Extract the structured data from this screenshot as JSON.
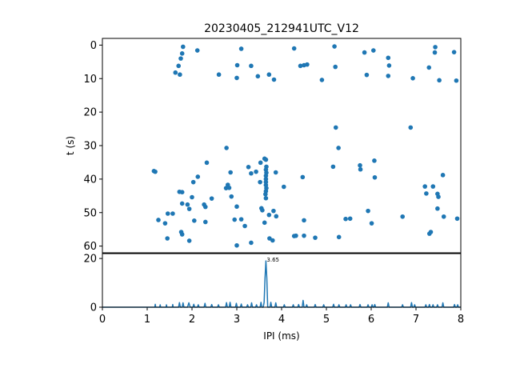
{
  "chart_data": [
    {
      "type": "scatter",
      "title": "20230405_212941UTC_V12",
      "ylabel": "t (s)",
      "xlim": [
        0,
        8
      ],
      "ylim": [
        62,
        -2
      ],
      "y_inverted": true,
      "yticks": [
        0,
        10,
        20,
        30,
        40,
        50,
        60
      ],
      "color": "#1f77b4",
      "points": [
        [
          1.8,
          0.5
        ],
        [
          1.78,
          2.5
        ],
        [
          2.12,
          1.6
        ],
        [
          1.75,
          4.0
        ],
        [
          1.7,
          6.2
        ],
        [
          1.63,
          8.2
        ],
        [
          1.73,
          8.8
        ],
        [
          3.1,
          1.1
        ],
        [
          3.01,
          6.0
        ],
        [
          3.0,
          9.8
        ],
        [
          3.32,
          6.2
        ],
        [
          3.47,
          9.3
        ],
        [
          3.72,
          8.8
        ],
        [
          3.83,
          10.3
        ],
        [
          4.28,
          1.0
        ],
        [
          4.5,
          6.0
        ],
        [
          4.42,
          6.2
        ],
        [
          4.57,
          5.8
        ],
        [
          4.9,
          10.4
        ],
        [
          5.18,
          0.4
        ],
        [
          5.2,
          6.5
        ],
        [
          5.85,
          2.2
        ],
        [
          6.05,
          1.6
        ],
        [
          5.9,
          8.9
        ],
        [
          6.38,
          3.8
        ],
        [
          6.4,
          6.1
        ],
        [
          6.38,
          9.2
        ],
        [
          6.93,
          9.9
        ],
        [
          7.43,
          0.6
        ],
        [
          7.42,
          2.2
        ],
        [
          7.29,
          6.7
        ],
        [
          7.52,
          10.5
        ],
        [
          7.85,
          2.1
        ],
        [
          7.9,
          10.6
        ],
        [
          2.6,
          8.8
        ],
        [
          5.21,
          24.6
        ],
        [
          6.88,
          24.6
        ],
        [
          5.27,
          30.7
        ],
        [
          2.77,
          30.7
        ],
        [
          1.18,
          37.8
        ],
        [
          1.15,
          37.6
        ],
        [
          1.25,
          52.2
        ],
        [
          1.4,
          53.2
        ],
        [
          1.45,
          57.7
        ],
        [
          1.46,
          50.3
        ],
        [
          1.57,
          50.3
        ],
        [
          1.78,
          43.9
        ],
        [
          1.72,
          43.8
        ],
        [
          1.78,
          47.3
        ],
        [
          1.76,
          55.8
        ],
        [
          1.78,
          56.5
        ],
        [
          1.9,
          47.6
        ],
        [
          1.94,
          48.9
        ],
        [
          1.94,
          58.4
        ],
        [
          2.0,
          45.4
        ],
        [
          2.03,
          40.9
        ],
        [
          2.05,
          52.4
        ],
        [
          2.13,
          39.3
        ],
        [
          2.27,
          47.6
        ],
        [
          2.3,
          48.3
        ],
        [
          2.3,
          52.8
        ],
        [
          2.33,
          35.1
        ],
        [
          2.44,
          45.8
        ],
        [
          2.76,
          42.7
        ],
        [
          2.8,
          41.7
        ],
        [
          2.83,
          42.6
        ],
        [
          2.86,
          38.0
        ],
        [
          2.88,
          45.2
        ],
        [
          2.95,
          52.1
        ],
        [
          3.0,
          48.2
        ],
        [
          3.0,
          59.8
        ],
        [
          3.1,
          52.0
        ],
        [
          3.18,
          54.0
        ],
        [
          3.26,
          36.4
        ],
        [
          3.32,
          38.3
        ],
        [
          3.32,
          59.0
        ],
        [
          3.43,
          37.8
        ],
        [
          3.53,
          35.1
        ],
        [
          3.52,
          40.9
        ],
        [
          3.57,
          49.3
        ],
        [
          3.55,
          48.7
        ],
        [
          3.62,
          33.9
        ],
        [
          3.65,
          34.2
        ],
        [
          3.66,
          36.3
        ],
        [
          3.65,
          37.2
        ],
        [
          3.66,
          38.1
        ],
        [
          3.65,
          39.0
        ],
        [
          3.65,
          40.0
        ],
        [
          3.65,
          40.9
        ],
        [
          3.65,
          41.8
        ],
        [
          3.66,
          42.7
        ],
        [
          3.65,
          43.6
        ],
        [
          3.64,
          44.5
        ],
        [
          3.65,
          45.7
        ],
        [
          3.62,
          53.0
        ],
        [
          3.72,
          50.7
        ],
        [
          3.73,
          57.7
        ],
        [
          3.8,
          58.3
        ],
        [
          3.82,
          49.5
        ],
        [
          3.87,
          38.0
        ],
        [
          3.88,
          51.1
        ],
        [
          4.05,
          42.3
        ],
        [
          4.28,
          57.0
        ],
        [
          4.32,
          56.9
        ],
        [
          4.47,
          39.4
        ],
        [
          4.5,
          52.3
        ],
        [
          4.5,
          56.9
        ],
        [
          4.75,
          57.5
        ],
        [
          5.15,
          36.3
        ],
        [
          5.28,
          57.3
        ],
        [
          5.43,
          51.9
        ],
        [
          5.53,
          51.8
        ],
        [
          5.75,
          35.9
        ],
        [
          5.76,
          37.1
        ],
        [
          5.93,
          49.5
        ],
        [
          6.01,
          53.2
        ],
        [
          6.07,
          34.5
        ],
        [
          6.08,
          39.5
        ],
        [
          6.7,
          51.2
        ],
        [
          7.2,
          42.2
        ],
        [
          7.23,
          44.3
        ],
        [
          7.3,
          56.3
        ],
        [
          7.33,
          55.8
        ],
        [
          7.38,
          42.2
        ],
        [
          7.48,
          44.4
        ],
        [
          7.5,
          45.3
        ],
        [
          7.48,
          48.8
        ],
        [
          7.6,
          38.8
        ],
        [
          7.62,
          51.2
        ],
        [
          7.92,
          51.8
        ]
      ]
    },
    {
      "type": "line",
      "xlabel": "IPI (ms)",
      "xlim": [
        0,
        8
      ],
      "ylim": [
        0,
        22
      ],
      "xticks": [
        0,
        1,
        2,
        3,
        4,
        5,
        6,
        7,
        8
      ],
      "yticks": [
        0,
        20
      ],
      "color": "#1f77b4",
      "peak_label": "3.65",
      "peak_x": 3.65,
      "points": [
        [
          0,
          0
        ],
        [
          1.17,
          0
        ],
        [
          1.18,
          1.2
        ],
        [
          1.19,
          0
        ],
        [
          1.28,
          0
        ],
        [
          1.29,
          1.0
        ],
        [
          1.3,
          0
        ],
        [
          1.42,
          0
        ],
        [
          1.43,
          1.0
        ],
        [
          1.44,
          0
        ],
        [
          1.56,
          0
        ],
        [
          1.57,
          1.1
        ],
        [
          1.58,
          0
        ],
        [
          1.7,
          0
        ],
        [
          1.72,
          1.9
        ],
        [
          1.74,
          0
        ],
        [
          1.78,
          0
        ],
        [
          1.8,
          1.8
        ],
        [
          1.82,
          0
        ],
        [
          1.9,
          0
        ],
        [
          1.93,
          1.8
        ],
        [
          1.96,
          0
        ],
        [
          2.02,
          0
        ],
        [
          2.04,
          1.2
        ],
        [
          2.06,
          0
        ],
        [
          2.12,
          0
        ],
        [
          2.14,
          1.0
        ],
        [
          2.16,
          0
        ],
        [
          2.27,
          0
        ],
        [
          2.29,
          1.6
        ],
        [
          2.31,
          0
        ],
        [
          2.42,
          0
        ],
        [
          2.44,
          1.1
        ],
        [
          2.46,
          0
        ],
        [
          2.57,
          0
        ],
        [
          2.59,
          1.0
        ],
        [
          2.61,
          0
        ],
        [
          2.75,
          0
        ],
        [
          2.77,
          1.9
        ],
        [
          2.79,
          0
        ],
        [
          2.83,
          0
        ],
        [
          2.85,
          2.0
        ],
        [
          2.87,
          0
        ],
        [
          2.97,
          0
        ],
        [
          2.99,
          1.6
        ],
        [
          3.01,
          0
        ],
        [
          3.08,
          0
        ],
        [
          3.1,
          1.3
        ],
        [
          3.12,
          0
        ],
        [
          3.22,
          0
        ],
        [
          3.24,
          1.0
        ],
        [
          3.26,
          0
        ],
        [
          3.31,
          0
        ],
        [
          3.33,
          1.8
        ],
        [
          3.35,
          0
        ],
        [
          3.42,
          0
        ],
        [
          3.44,
          1.0
        ],
        [
          3.46,
          0
        ],
        [
          3.52,
          0
        ],
        [
          3.54,
          2.0
        ],
        [
          3.56,
          0
        ],
        [
          3.59,
          0
        ],
        [
          3.61,
          2.0
        ],
        [
          3.63,
          12.0
        ],
        [
          3.65,
          19.0
        ],
        [
          3.67,
          12.0
        ],
        [
          3.69,
          0
        ],
        [
          3.74,
          0
        ],
        [
          3.76,
          2.0
        ],
        [
          3.78,
          0
        ],
        [
          3.85,
          0
        ],
        [
          3.87,
          1.8
        ],
        [
          3.89,
          0
        ],
        [
          4.04,
          0
        ],
        [
          4.06,
          1.0
        ],
        [
          4.08,
          0
        ],
        [
          4.24,
          0
        ],
        [
          4.26,
          1.0
        ],
        [
          4.28,
          0
        ],
        [
          4.36,
          0
        ],
        [
          4.38,
          1.1
        ],
        [
          4.4,
          0
        ],
        [
          4.46,
          0
        ],
        [
          4.48,
          2.8
        ],
        [
          4.5,
          0
        ],
        [
          4.54,
          0
        ],
        [
          4.56,
          1.0
        ],
        [
          4.58,
          0
        ],
        [
          4.73,
          0
        ],
        [
          4.75,
          1.1
        ],
        [
          4.77,
          0
        ],
        [
          4.92,
          0
        ],
        [
          4.94,
          1.0
        ],
        [
          4.96,
          0
        ],
        [
          5.14,
          0
        ],
        [
          5.16,
          1.2
        ],
        [
          5.18,
          0
        ],
        [
          5.26,
          0
        ],
        [
          5.28,
          1.0
        ],
        [
          5.3,
          0
        ],
        [
          5.42,
          0
        ],
        [
          5.44,
          1.0
        ],
        [
          5.46,
          0
        ],
        [
          5.52,
          0
        ],
        [
          5.54,
          1.0
        ],
        [
          5.56,
          0
        ],
        [
          5.73,
          0
        ],
        [
          5.75,
          1.1
        ],
        [
          5.77,
          0
        ],
        [
          5.91,
          0
        ],
        [
          5.93,
          1.0
        ],
        [
          5.95,
          0
        ],
        [
          6.0,
          0
        ],
        [
          6.02,
          1.0
        ],
        [
          6.04,
          0
        ],
        [
          6.06,
          0
        ],
        [
          6.08,
          1.1
        ],
        [
          6.1,
          0
        ],
        [
          6.36,
          0
        ],
        [
          6.38,
          1.8
        ],
        [
          6.4,
          0
        ],
        [
          6.68,
          0
        ],
        [
          6.7,
          1.0
        ],
        [
          6.72,
          0
        ],
        [
          6.88,
          0
        ],
        [
          6.9,
          1.9
        ],
        [
          6.92,
          0
        ],
        [
          6.95,
          0
        ],
        [
          6.97,
          1.0
        ],
        [
          6.99,
          0
        ],
        [
          7.2,
          0
        ],
        [
          7.22,
          1.0
        ],
        [
          7.24,
          0
        ],
        [
          7.28,
          0
        ],
        [
          7.3,
          1.1
        ],
        [
          7.32,
          0
        ],
        [
          7.36,
          0
        ],
        [
          7.38,
          1.0
        ],
        [
          7.4,
          0
        ],
        [
          7.46,
          0
        ],
        [
          7.48,
          1.0
        ],
        [
          7.5,
          0
        ],
        [
          7.58,
          0
        ],
        [
          7.6,
          1.8
        ],
        [
          7.62,
          0
        ],
        [
          7.84,
          0
        ],
        [
          7.86,
          1.1
        ],
        [
          7.88,
          0
        ],
        [
          7.91,
          0
        ],
        [
          7.93,
          1.0
        ],
        [
          7.95,
          0
        ],
        [
          8.0,
          0
        ]
      ]
    }
  ]
}
